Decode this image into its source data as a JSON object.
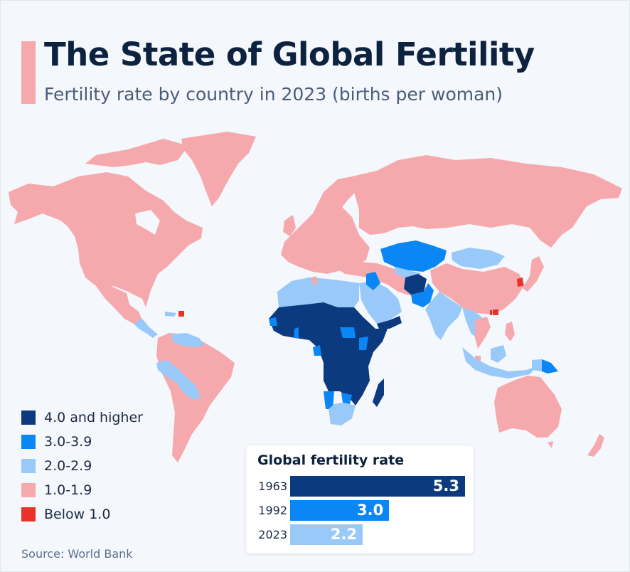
{
  "header": {
    "title": "The State of Global Fertility",
    "subtitle": "Fertility rate by country in 2023 (births per woman)"
  },
  "colors": {
    "accent": "#f5a9ad",
    "cat_4plus": "#0b3a7e",
    "cat_3to39": "#0a87f5",
    "cat_2to29": "#98c9f8",
    "cat_1to19": "#f5a9ad",
    "cat_below1": "#e8322a",
    "no_data": "#dde1e6"
  },
  "legend": {
    "items": [
      {
        "label": "4.0 and higher",
        "color": "#0b3a7e"
      },
      {
        "label": "3.0-3.9",
        "color": "#0a87f5"
      },
      {
        "label": "2.0-2.9",
        "color": "#98c9f8"
      },
      {
        "label": "1.0-1.9",
        "color": "#f5a9ad"
      },
      {
        "label": "Below 1.0",
        "color": "#e8322a"
      }
    ]
  },
  "map": {
    "regions": [
      {
        "name": "North America",
        "category": "1.0-1.9"
      },
      {
        "name": "Greenland",
        "category": "1.0-1.9"
      },
      {
        "name": "Central America",
        "category": "2.0-2.9"
      },
      {
        "name": "Puerto Rico",
        "category": "Below 1.0"
      },
      {
        "name": "South America (Brazil, Argentina, Chile, Colombia)",
        "category": "1.0-1.9"
      },
      {
        "name": "Peru, Bolivia, Paraguay, Venezuela, Guyana",
        "category": "2.0-2.9"
      },
      {
        "name": "Europe",
        "category": "1.0-1.9"
      },
      {
        "name": "Russia",
        "category": "1.0-1.9"
      },
      {
        "name": "North Africa",
        "category": "2.0-2.9"
      },
      {
        "name": "Sub-Saharan Africa",
        "category": "4.0 and higher"
      },
      {
        "name": "Ghana, Gabon, South Sudan, Kenya, Namibia, Botswana",
        "category": "3.0-3.9"
      },
      {
        "name": "South Africa",
        "category": "2.0-2.9"
      },
      {
        "name": "Madagascar",
        "category": "4.0 and higher"
      },
      {
        "name": "Arabian Peninsula",
        "category": "2.0-2.9"
      },
      {
        "name": "Yemen",
        "category": "4.0 and higher"
      },
      {
        "name": "Iraq",
        "category": "3.0-3.9"
      },
      {
        "name": "Iran, Turkey",
        "category": "1.0-1.9"
      },
      {
        "name": "Kazakhstan, Central Asia",
        "category": "3.0-3.9"
      },
      {
        "name": "Afghanistan",
        "category": "4.0 and higher"
      },
      {
        "name": "Pakistan",
        "category": "3.0-3.9"
      },
      {
        "name": "India",
        "category": "2.0-2.9"
      },
      {
        "name": "Mongolia",
        "category": "2.0-2.9"
      },
      {
        "name": "China",
        "category": "1.0-1.9"
      },
      {
        "name": "South Korea",
        "category": "Below 1.0"
      },
      {
        "name": "Hong Kong, Macau",
        "category": "Below 1.0"
      },
      {
        "name": "Japan",
        "category": "1.0-1.9"
      },
      {
        "name": "Southeast Asia",
        "category": "2.0-2.9"
      },
      {
        "name": "Thailand",
        "category": "1.0-1.9"
      },
      {
        "name": "Indonesia",
        "category": "2.0-2.9"
      },
      {
        "name": "Papua New Guinea",
        "category": "3.0-3.9"
      },
      {
        "name": "Australia",
        "category": "1.0-1.9"
      },
      {
        "name": "New Zealand",
        "category": "1.0-1.9"
      }
    ]
  },
  "inset": {
    "title": "Global fertility rate",
    "bars": [
      {
        "year": "1963",
        "value": 5.3,
        "label": "5.3",
        "color": "#0b3a7e"
      },
      {
        "year": "1992",
        "value": 3.0,
        "label": "3.0",
        "color": "#0a87f5"
      },
      {
        "year": "2023",
        "value": 2.2,
        "label": "2.2",
        "color": "#98c9f8"
      }
    ],
    "max": 5.3
  },
  "chart_data": {
    "type": "bar",
    "title": "Global fertility rate",
    "categories": [
      "1963",
      "1992",
      "2023"
    ],
    "values": [
      5.3,
      3.0,
      2.2
    ],
    "xlabel": "",
    "ylabel": "births per woman"
  },
  "footer": {
    "source": "Source: World Bank"
  }
}
